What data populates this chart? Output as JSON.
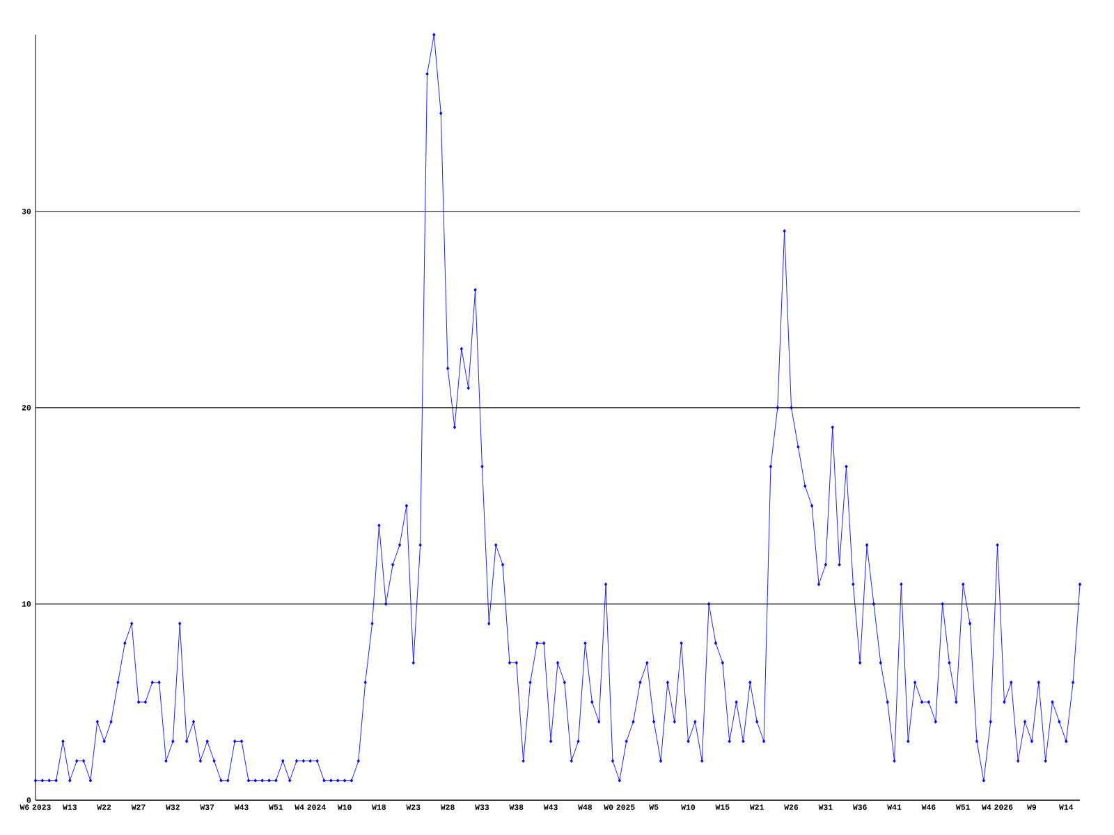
{
  "chart_data": {
    "type": "line",
    "categories": [
      "W6 2023",
      null,
      null,
      null,
      null,
      "W13",
      null,
      null,
      null,
      null,
      "W22",
      null,
      null,
      null,
      null,
      "W27",
      null,
      null,
      null,
      null,
      "W32",
      null,
      null,
      null,
      null,
      "W37",
      null,
      null,
      null,
      null,
      "W43",
      null,
      null,
      null,
      null,
      "W51",
      null,
      null,
      null,
      null,
      "W4 2024",
      null,
      null,
      null,
      null,
      "W10",
      null,
      null,
      null,
      null,
      "W18",
      null,
      null,
      null,
      null,
      "W23",
      null,
      null,
      null,
      null,
      "W28",
      null,
      null,
      null,
      null,
      "W33",
      null,
      null,
      null,
      null,
      "W38",
      null,
      null,
      null,
      null,
      "W43",
      null,
      null,
      null,
      null,
      "W48",
      null,
      null,
      null,
      null,
      "W0 2025",
      null,
      null,
      null,
      null,
      "W5",
      null,
      null,
      null,
      null,
      "W10",
      null,
      null,
      null,
      null,
      "W15",
      null,
      null,
      null,
      null,
      "W21",
      null,
      null,
      null,
      null,
      "W26",
      null,
      null,
      null,
      null,
      "W31",
      null,
      null,
      null,
      null,
      "W36",
      null,
      null,
      null,
      null,
      "W41",
      null,
      null,
      null,
      null,
      "W46",
      null,
      null,
      null,
      null,
      "W51",
      null,
      null,
      null,
      null,
      "W4 2026",
      null,
      null,
      null,
      null,
      "W9",
      null,
      null,
      null,
      null,
      "W14",
      null,
      null
    ],
    "series": [
      {
        "color": "#0000ff",
        "values": [
          1,
          1,
          1,
          1,
          3,
          1,
          2,
          2,
          1,
          4,
          3,
          4,
          6,
          8,
          9,
          5,
          5,
          6,
          6,
          2,
          3,
          9,
          3,
          4,
          2,
          3,
          2,
          1,
          1,
          3,
          3,
          1,
          1,
          1,
          1,
          1,
          2,
          1,
          2,
          2,
          2,
          2,
          1,
          1,
          1,
          1,
          1,
          2,
          6,
          9,
          14,
          10,
          12,
          13,
          15,
          7,
          13,
          37,
          39,
          35,
          22,
          19,
          23,
          21,
          26,
          17,
          9,
          13,
          12,
          7,
          7,
          2,
          6,
          8,
          8,
          3,
          7,
          6,
          2,
          3,
          8,
          5,
          4,
          11,
          2,
          1,
          3,
          4,
          6,
          7,
          4,
          2,
          6,
          4,
          8,
          3,
          4,
          2,
          10,
          8,
          7,
          3,
          5,
          3,
          6,
          4,
          3,
          17,
          20,
          29,
          20,
          18,
          16,
          15,
          11,
          12,
          19,
          12,
          17,
          11,
          7,
          13,
          10,
          7,
          5,
          2,
          11,
          3,
          6,
          5,
          5,
          4,
          10,
          7,
          5,
          11,
          9,
          3,
          1,
          4,
          13,
          5,
          6,
          2,
          4,
          3,
          6,
          2,
          5,
          4,
          3,
          6,
          11
        ]
      }
    ],
    "ylim": [
      0,
      39
    ],
    "yticks": [
      0,
      10,
      20,
      30
    ],
    "grid": "y",
    "marker": "diamond",
    "line_style": "solid"
  }
}
